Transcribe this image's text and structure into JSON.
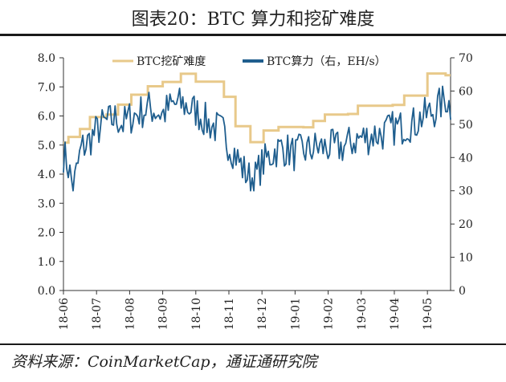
{
  "title": "图表20：BTC 算力和挖矿难度",
  "source": "资料来源：CoinMarketCap，通证通研究院",
  "chart_data": {
    "type": "line",
    "x_categories": [
      "18-06",
      "18-07",
      "18-08",
      "18-09",
      "18-10",
      "18-11",
      "18-12",
      "19-01",
      "19-02",
      "19-03",
      "19-04",
      "19-05"
    ],
    "y_left": {
      "ticks": [
        "0.0",
        "1.0",
        "2.0",
        "3.0",
        "4.0",
        "5.0",
        "6.0",
        "7.0",
        "8.0"
      ],
      "ylim": [
        0,
        8
      ]
    },
    "y_right": {
      "ticks": [
        "0",
        "10",
        "20",
        "30",
        "40",
        "50",
        "60",
        "70"
      ],
      "ylim": [
        0,
        70
      ]
    },
    "series": [
      {
        "name": "BTC挖矿难度",
        "axis": "left",
        "color": "#E8C98A",
        "type": "step",
        "points": [
          [
            0.0,
            5.08
          ],
          [
            0.15,
            5.08
          ],
          [
            0.15,
            5.28
          ],
          [
            0.5,
            5.28
          ],
          [
            0.5,
            5.55
          ],
          [
            0.8,
            5.55
          ],
          [
            0.8,
            5.96
          ],
          [
            1.3,
            5.96
          ],
          [
            1.3,
            6.05
          ],
          [
            1.65,
            6.05
          ],
          [
            1.65,
            6.39
          ],
          [
            2.05,
            6.39
          ],
          [
            2.05,
            6.73
          ],
          [
            2.55,
            6.73
          ],
          [
            2.55,
            7.02
          ],
          [
            3.0,
            7.02
          ],
          [
            3.0,
            7.17
          ],
          [
            3.55,
            7.17
          ],
          [
            3.55,
            7.45
          ],
          [
            4.0,
            7.45
          ],
          [
            4.0,
            7.18
          ],
          [
            4.85,
            7.18
          ],
          [
            4.85,
            6.66
          ],
          [
            5.2,
            6.66
          ],
          [
            5.2,
            5.65
          ],
          [
            5.65,
            5.65
          ],
          [
            5.65,
            5.1
          ],
          [
            6.05,
            5.1
          ],
          [
            6.05,
            5.5
          ],
          [
            6.5,
            5.5
          ],
          [
            6.5,
            5.62
          ],
          [
            7.25,
            5.62
          ],
          [
            7.25,
            5.61
          ],
          [
            7.55,
            5.61
          ],
          [
            7.55,
            5.83
          ],
          [
            7.9,
            5.83
          ],
          [
            7.9,
            6.05
          ],
          [
            8.6,
            6.05
          ],
          [
            8.6,
            6.07
          ],
          [
            8.9,
            6.07
          ],
          [
            8.9,
            6.35
          ],
          [
            9.95,
            6.35
          ],
          [
            9.95,
            6.38
          ],
          [
            10.3,
            6.38
          ],
          [
            10.3,
            6.7
          ],
          [
            11.0,
            6.7
          ],
          [
            11.0,
            7.46
          ],
          [
            11.55,
            7.46
          ],
          [
            11.55,
            7.4
          ],
          [
            11.7,
            7.4
          ]
        ]
      },
      {
        "name": "BTC算力（右，EH/s）",
        "axis": "right",
        "color": "#1F5E8E",
        "type": "line",
        "anchors": [
          [
            0.0,
            41
          ],
          [
            0.1,
            39
          ],
          [
            0.2,
            35
          ],
          [
            0.3,
            31
          ],
          [
            0.4,
            36
          ],
          [
            0.55,
            43
          ],
          [
            0.7,
            44
          ],
          [
            0.85,
            46
          ],
          [
            1.0,
            48
          ],
          [
            1.2,
            50
          ],
          [
            1.4,
            51
          ],
          [
            1.6,
            52
          ],
          [
            1.8,
            50
          ],
          [
            2.0,
            52
          ],
          [
            2.2,
            53
          ],
          [
            2.4,
            54
          ],
          [
            2.6,
            55
          ],
          [
            2.8,
            54
          ],
          [
            3.0,
            53
          ],
          [
            3.2,
            55
          ],
          [
            3.4,
            56
          ],
          [
            3.6,
            56
          ],
          [
            3.8,
            55
          ],
          [
            4.0,
            54
          ],
          [
            4.2,
            52
          ],
          [
            4.4,
            50
          ],
          [
            4.6,
            49
          ],
          [
            4.8,
            48
          ],
          [
            5.0,
            44
          ],
          [
            5.2,
            41
          ],
          [
            5.4,
            37
          ],
          [
            5.6,
            34
          ],
          [
            5.8,
            34
          ],
          [
            6.0,
            38
          ],
          [
            6.2,
            40
          ],
          [
            6.4,
            42
          ],
          [
            6.6,
            43
          ],
          [
            6.8,
            42
          ],
          [
            7.0,
            41
          ],
          [
            7.2,
            42
          ],
          [
            7.4,
            42
          ],
          [
            7.6,
            43
          ],
          [
            7.8,
            43
          ],
          [
            8.0,
            43
          ],
          [
            8.2,
            43
          ],
          [
            8.4,
            43
          ],
          [
            8.6,
            44
          ],
          [
            8.8,
            45
          ],
          [
            9.0,
            46
          ],
          [
            9.2,
            46
          ],
          [
            9.4,
            47
          ],
          [
            9.6,
            47
          ],
          [
            9.8,
            48
          ],
          [
            10.0,
            49
          ],
          [
            10.2,
            49
          ],
          [
            10.4,
            50
          ],
          [
            10.6,
            50
          ],
          [
            10.8,
            52
          ],
          [
            11.0,
            53
          ],
          [
            11.2,
            54
          ],
          [
            11.4,
            56
          ],
          [
            11.55,
            58
          ],
          [
            11.7,
            55
          ]
        ]
      }
    ],
    "grid": false,
    "legend_position": "top"
  }
}
